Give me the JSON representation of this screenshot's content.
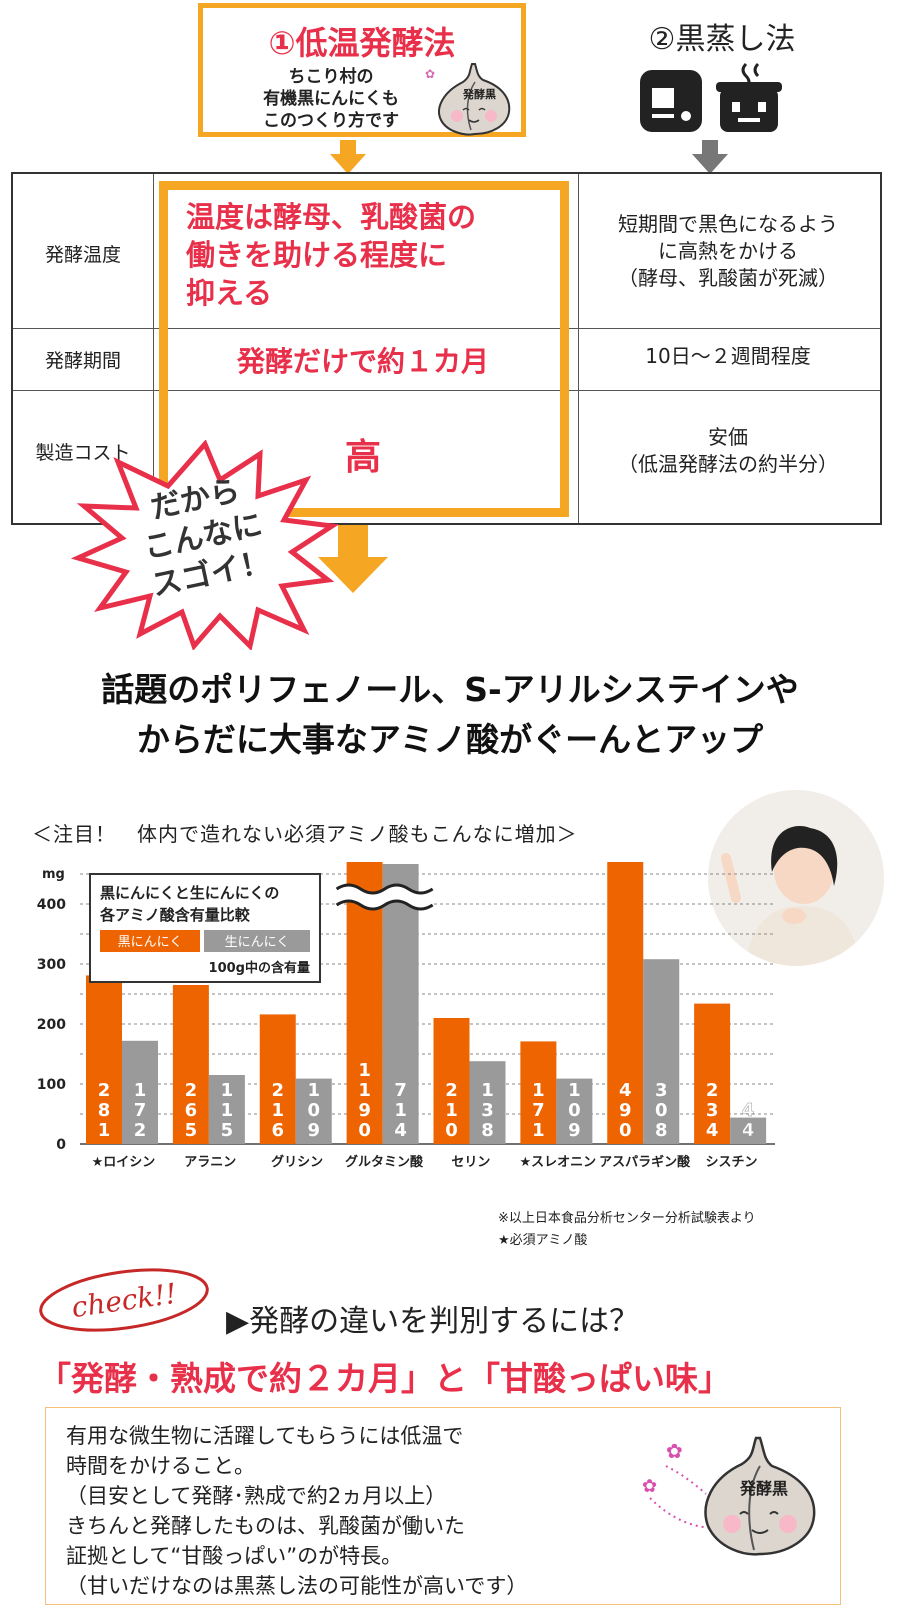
{
  "method1": {
    "title": "①低温発酵法",
    "sub": [
      "ちこり村の",
      "有機黒にんにくも",
      "このつくり方です"
    ],
    "mascot_label": "発酵黒"
  },
  "method2": {
    "title": "②黒蒸し法"
  },
  "table": {
    "rows": [
      {
        "label": "発酵温度",
        "left": [
          "温度は酵母、乳酸菌の",
          "働きを助ける程度に",
          "抑える"
        ],
        "right": [
          "短期間で黒色になるよう",
          "に高熱をかける",
          "（酵母、乳酸菌が死滅）"
        ]
      },
      {
        "label": "発酵期間",
        "left": [
          "発酵だけで約１カ月"
        ],
        "right": [
          "10日〜２週間程度"
        ]
      },
      {
        "label": "製造コスト",
        "left": [
          "高"
        ],
        "right": [
          "安価",
          "（低温発酵法の約半分）"
        ]
      }
    ]
  },
  "burst": [
    "だから",
    "こんなに",
    "スゴイ！"
  ],
  "headline": [
    "話題のポリフェノール、S-アリルシステインや",
    "からだに大事なアミノ酸がぐーんとアップ"
  ],
  "chart_note": "＜注目！　体内で造れない必須アミノ酸もこんなに増加＞",
  "colors": {
    "orange": "#ee6400",
    "gray": "#9a9a9a",
    "accent_red": "#e8304a",
    "accent_yellow": "#f5a623"
  },
  "chart_data": {
    "type": "bar",
    "title": "黒にんにくと生にんにくの各アミノ酸含有量比較",
    "unit_note": "100g中の含有量",
    "ylabel": "mg",
    "yticks": [
      0,
      100,
      200,
      300,
      400
    ],
    "ylim": [
      0,
      500
    ],
    "categories": [
      "★ロイシン",
      "アラニン",
      "グリシン",
      "グルタミン酸",
      "セリン",
      "★スレオニン",
      "アスパラギン酸",
      "シスチン"
    ],
    "series": [
      {
        "name": "黒にんにく",
        "values": [
          281,
          265,
          216,
          1190,
          210,
          171,
          490,
          234
        ]
      },
      {
        "name": "生にんにく",
        "values": [
          172,
          115,
          109,
          714,
          138,
          109,
          308,
          44
        ]
      }
    ],
    "axis_break": "グルタミン酸",
    "footnotes": [
      "※以上日本食品分析センター分析試験表より",
      "★必須アミノ酸"
    ]
  },
  "check": {
    "badge": "check!!",
    "question": "▶発酵の違いを判別するには？",
    "answer": "「発酵・熟成で約２カ月」と「甘酸っぱい味」"
  },
  "explain": [
    "有用な微生物に活躍してもらうには低温で",
    "時間をかけること。",
    "（目安として発酵･熟成で約2ヵ月以上）",
    "きちんと発酵したものは、乳酸菌が働いた",
    "証拠として“甘酸っぱい”のが特長。",
    "（甘いだけなのは黒蒸し法の可能性が高いです）"
  ]
}
